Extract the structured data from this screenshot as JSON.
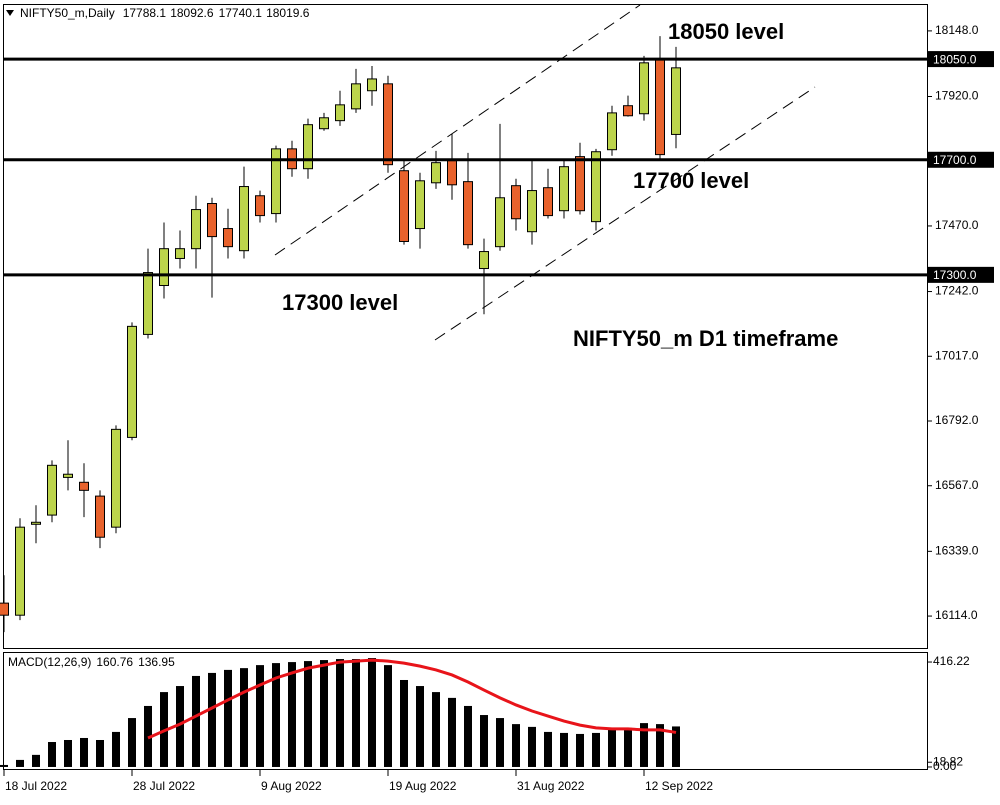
{
  "chart_data": [
    {
      "type": "candlestick",
      "title": "NIFTY50_m,Daily",
      "categories": [
        "18 Jul 2022",
        null,
        null,
        null,
        null,
        null,
        null,
        null,
        "28 Jul 2022",
        null,
        null,
        null,
        null,
        null,
        null,
        null,
        "9 Aug 2022",
        null,
        null,
        null,
        null,
        null,
        null,
        null,
        "19 Aug 2022",
        null,
        null,
        null,
        null,
        null,
        null,
        null,
        "31 Aug 2022",
        null,
        null,
        null,
        null,
        null,
        null,
        null,
        "12 Sep 2022",
        null,
        null
      ],
      "open": [
        16159,
        16117,
        16433,
        16465,
        16596,
        16579,
        16531,
        16423,
        16735,
        17093,
        17263,
        17357,
        17391,
        17548,
        17461,
        17384,
        17575,
        17513,
        17738,
        17669,
        17808,
        17836,
        17877,
        17940,
        17964,
        17662,
        17461,
        17620,
        17697,
        17624,
        17322,
        17398,
        17610,
        17450,
        17603,
        17523,
        17711,
        17485,
        17735,
        17888,
        17860,
        18047,
        17788.1
      ],
      "high": [
        16256,
        16454,
        16499,
        16655,
        16725,
        16645,
        16551,
        16777,
        17135,
        17391,
        17482,
        17454,
        17575,
        17568,
        17530,
        17676,
        17593,
        17749,
        17766,
        17843,
        17863,
        17940,
        18016,
        18026,
        17992,
        17697,
        17655,
        17731,
        17790,
        17724,
        17426,
        17825,
        17634,
        17697,
        17669,
        17697,
        17759,
        17738,
        17888,
        17923,
        18061,
        18130,
        18092.6
      ],
      "low": [
        16058,
        16100,
        16367,
        16440,
        16551,
        16458,
        16350,
        16402,
        16725,
        17079,
        17218,
        17322,
        17322,
        17221,
        17357,
        17357,
        17482,
        17482,
        17641,
        17634,
        17801,
        17818,
        17863,
        17888,
        17655,
        17405,
        17391,
        17599,
        17561,
        17391,
        17163,
        17384,
        17454,
        17405,
        17496,
        17496,
        17510,
        17454,
        17714,
        17850,
        17836,
        17697,
        17740.1
      ],
      "close": [
        16117,
        16423,
        16440,
        16638,
        16607,
        16551,
        16388,
        16763,
        17121,
        17308,
        17391,
        17391,
        17527,
        17433,
        17398,
        17607,
        17506,
        17738,
        17669,
        17822,
        17846,
        17891,
        17964,
        17981,
        17683,
        17416,
        17627,
        17690,
        17613,
        17405,
        17381,
        17568,
        17495,
        17593,
        17506,
        17676,
        17523,
        17728,
        17863,
        17853,
        18037,
        17718,
        18019.6
      ],
      "up_color": "#bcd44c",
      "down_color": "#e8622c",
      "ylim": [
        16003,
        18238
      ],
      "yticks": [
        {
          "value": 18148,
          "label": "18148.0"
        },
        {
          "value": 17920,
          "label": "17920.0"
        },
        {
          "value": 17470,
          "label": "17470.0"
        },
        {
          "value": 17242,
          "label": "17242.0"
        },
        {
          "value": 17017,
          "label": "17017.0"
        },
        {
          "value": 16792,
          "label": "16792.0"
        },
        {
          "value": 16567,
          "label": "16567.0"
        },
        {
          "value": 16339,
          "label": "16339.0"
        },
        {
          "value": 16114,
          "label": "16114.0"
        }
      ],
      "levels": [
        {
          "value": 18050,
          "label": "18050.0"
        },
        {
          "value": 17700,
          "label": "17700.0"
        },
        {
          "value": 17300,
          "label": "17300.0"
        }
      ],
      "annotations": [
        "18050 level",
        "17700 level",
        "17300 level",
        "NIFTY50_m D1 timeframe"
      ]
    },
    {
      "type": "bar",
      "title": "MACD(12,26,9)",
      "values": [
        8,
        28,
        48,
        99,
        107,
        115,
        107,
        139,
        194,
        242,
        297,
        321,
        361,
        373,
        385,
        392,
        404,
        412,
        416,
        420,
        424,
        428,
        428,
        432,
        404,
        345,
        321,
        297,
        274,
        242,
        206,
        194,
        170,
        159,
        139,
        135,
        131,
        135,
        147,
        155,
        174,
        170,
        160.76
      ],
      "color": "#000000",
      "line": {
        "color": "#e8141a",
        "values": [
          null,
          null,
          null,
          null,
          null,
          null,
          null,
          null,
          null,
          115,
          143,
          170,
          202,
          234,
          266,
          297,
          325,
          353,
          373,
          392,
          404,
          416,
          420,
          424,
          420,
          412,
          400,
          385,
          365,
          337,
          305,
          274,
          246,
          222,
          202,
          182,
          166,
          155,
          151,
          151,
          147,
          147,
          136.95
        ]
      },
      "ylim": [
        -12,
        456
      ],
      "yticks": [
        416.22,
        18.82,
        {
          "value": 0,
          "label": "0.00"
        }
      ]
    }
  ]
}
